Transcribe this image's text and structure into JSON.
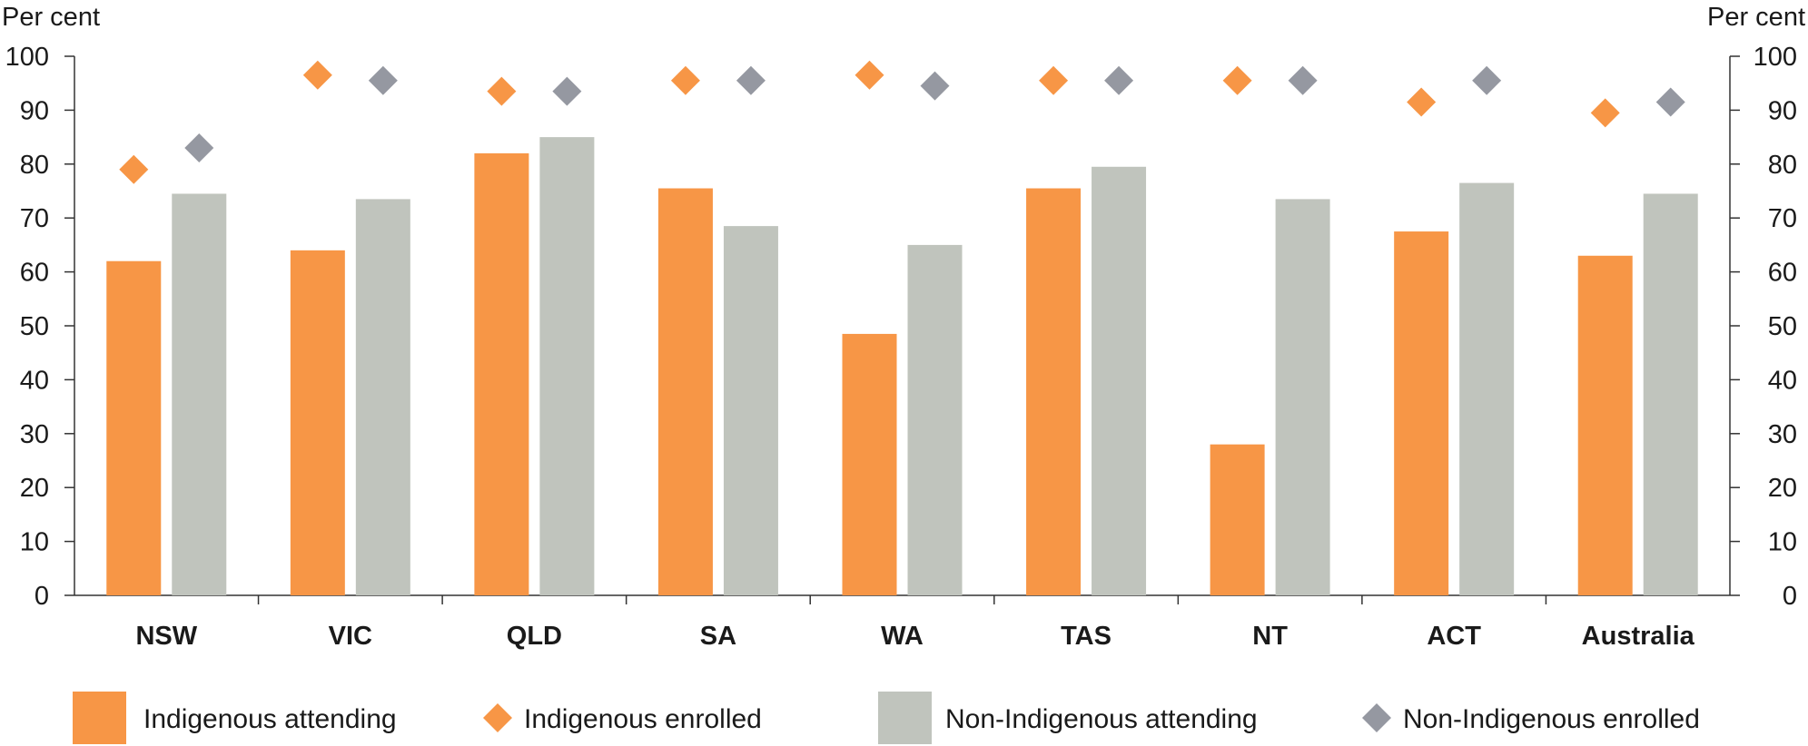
{
  "chart_data": {
    "type": "bar",
    "left_axis_label": "Per cent",
    "right_axis_label": "Per cent",
    "ylim": [
      0,
      100
    ],
    "yticks": [
      0,
      10,
      20,
      30,
      40,
      50,
      60,
      70,
      80,
      90,
      100
    ],
    "grid": false,
    "legend_placement": "bottom",
    "categories": [
      "NSW",
      "VIC",
      "QLD",
      "SA",
      "WA",
      "TAS",
      "NT",
      "ACT",
      "Australia"
    ],
    "series": [
      {
        "name": "Indigenous attending",
        "mark": "bar",
        "color": "#f79646",
        "values": [
          62,
          64,
          82,
          75.5,
          48.5,
          75.5,
          28,
          67.5,
          63
        ]
      },
      {
        "name": "Non-Indigenous attending",
        "mark": "bar",
        "color": "#c0c4bd",
        "values": [
          74.5,
          73.5,
          85,
          68.5,
          65,
          79.5,
          73.5,
          76.5,
          74.5
        ]
      },
      {
        "name": "Indigenous enrolled",
        "mark": "diamond",
        "color": "#f79646",
        "values": [
          79,
          96.5,
          93.5,
          95.5,
          96.5,
          95.5,
          95.5,
          91.5,
          89.5
        ]
      },
      {
        "name": "Non-Indigenous enrolled",
        "mark": "diamond",
        "color": "#9598a1",
        "values": [
          83,
          95.5,
          93.5,
          95.5,
          94.5,
          95.5,
          95.5,
          95.5,
          91.5
        ]
      }
    ],
    "legend": [
      {
        "label": "Indigenous attending",
        "symbol": "square",
        "color": "#f79646"
      },
      {
        "label": "Indigenous enrolled",
        "symbol": "diamond",
        "color": "#f79646"
      },
      {
        "label": "Non-Indigenous attending",
        "symbol": "square",
        "color": "#c0c4bd"
      },
      {
        "label": "Non-Indigenous enrolled",
        "symbol": "diamond",
        "color": "#9598a1"
      }
    ]
  }
}
